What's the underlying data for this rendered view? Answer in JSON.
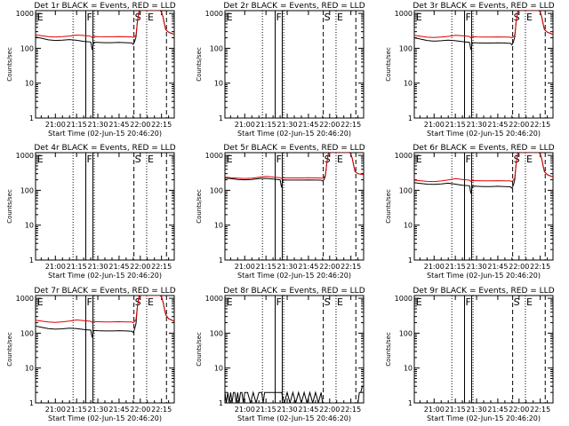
{
  "figure": {
    "ylabel": "Counts/sec",
    "xlabel": "Start Time (02-Jun-15 20:46:20)",
    "x_ticks": [
      "21:00",
      "21:15",
      "21:30",
      "21:45",
      "22:00",
      "22:15"
    ],
    "x_tick_minutes": [
      0,
      15,
      30,
      45,
      60,
      75
    ],
    "x_range_minutes": [
      -14,
      84
    ],
    "y_ticks": [
      "1",
      "10",
      "100",
      "1000"
    ],
    "y_range": [
      1,
      1200
    ],
    "y_scale": "log",
    "colors": {
      "events": "#000000",
      "lld": "#e00000",
      "frame": "#000000"
    },
    "markers": [
      {
        "label": "E",
        "x": -13.5,
        "line": "none"
      },
      {
        "label": "F",
        "x": 21.5,
        "line": "solid"
      },
      {
        "label": "",
        "x": 26.5,
        "line": "solid"
      },
      {
        "label": "",
        "x": 12.5,
        "line": "dotted"
      },
      {
        "label": "",
        "x": 27.5,
        "line": "dotted"
      },
      {
        "label": "S",
        "x": 55.5,
        "line": "dashed"
      },
      {
        "label": "E",
        "x": 64.5,
        "line": "dotted"
      },
      {
        "label": "",
        "x": 78.5,
        "line": "dashed"
      }
    ]
  },
  "chart_data": [
    {
      "type": "line",
      "title": "Det 1r BLACK = Events, RED = LLD",
      "series": [
        {
          "name": "Events",
          "x": [
            -14,
            -10,
            -5,
            0,
            5,
            10,
            15,
            20,
            25,
            26,
            27,
            30,
            35,
            40,
            45,
            50,
            54,
            55,
            56,
            57,
            58,
            59,
            60,
            61,
            62,
            64,
            66,
            68,
            70,
            72,
            73,
            74,
            75,
            76,
            77,
            78,
            80,
            82,
            84
          ],
          "y": [
            210,
            195,
            175,
            168,
            172,
            178,
            170,
            158,
            152,
            90,
            148,
            147,
            145,
            145,
            147,
            145,
            142,
            130,
            155,
            210,
            600,
            1100,
            1200,
            1200,
            1200,
            1200,
            1200,
            1200,
            1200,
            1200,
            1200,
            1200,
            1100,
            800,
            500,
            340,
            290,
            270,
            250
          ]
        },
        {
          "name": "LLD",
          "x": [
            -14,
            -10,
            -5,
            0,
            5,
            10,
            15,
            20,
            25,
            26,
            27,
            30,
            35,
            40,
            45,
            50,
            54,
            55,
            56,
            57,
            58,
            59,
            60,
            61,
            62,
            64,
            66,
            68,
            70,
            72,
            73,
            74,
            75,
            76,
            77,
            78,
            80,
            82,
            84
          ],
          "y": [
            245,
            230,
            215,
            210,
            215,
            225,
            240,
            232,
            222,
            205,
            218,
            216,
            214,
            214,
            216,
            214,
            212,
            205,
            215,
            240,
            600,
            1100,
            1200,
            1200,
            1200,
            1200,
            1200,
            1200,
            1200,
            1200,
            1200,
            1200,
            1100,
            800,
            500,
            340,
            290,
            270,
            250
          ]
        }
      ]
    },
    {
      "type": "line",
      "title": "Det 2r BLACK = Events, RED = LLD",
      "series": []
    },
    {
      "type": "line",
      "title": "Det 3r BLACK = Events, RED = LLD",
      "series": [
        {
          "name": "Events",
          "x": [
            -14,
            -10,
            -5,
            0,
            5,
            10,
            15,
            20,
            25,
            26,
            27,
            30,
            35,
            40,
            45,
            50,
            54,
            55,
            56,
            57,
            58,
            59,
            60,
            61,
            62,
            64,
            66,
            68,
            70,
            72,
            73,
            74,
            75,
            76,
            77,
            78,
            80,
            82,
            84
          ],
          "y": [
            200,
            185,
            168,
            160,
            165,
            172,
            165,
            155,
            148,
            90,
            145,
            143,
            141,
            141,
            143,
            141,
            138,
            126,
            150,
            210,
            600,
            1100,
            1200,
            1200,
            1200,
            1200,
            1200,
            1200,
            1200,
            1200,
            1200,
            1200,
            1100,
            800,
            500,
            340,
            290,
            270,
            250
          ]
        },
        {
          "name": "LLD",
          "x": [
            -14,
            -10,
            -5,
            0,
            5,
            10,
            15,
            20,
            25,
            26,
            27,
            30,
            35,
            40,
            45,
            50,
            54,
            55,
            56,
            57,
            58,
            59,
            60,
            61,
            62,
            64,
            66,
            68,
            70,
            72,
            73,
            74,
            75,
            76,
            77,
            78,
            80,
            82,
            84
          ],
          "y": [
            235,
            222,
            208,
            203,
            210,
            220,
            236,
            228,
            218,
            200,
            214,
            212,
            210,
            210,
            212,
            210,
            208,
            200,
            212,
            240,
            600,
            1100,
            1200,
            1200,
            1200,
            1200,
            1200,
            1200,
            1200,
            1200,
            1200,
            1200,
            1100,
            800,
            500,
            340,
            290,
            270,
            250
          ]
        }
      ]
    },
    {
      "type": "line",
      "title": "Det 4r BLACK = Events, RED = LLD",
      "series": []
    },
    {
      "type": "line",
      "title": "Det 5r BLACK = Events, RED = LLD",
      "series": [
        {
          "name": "Events",
          "x": [
            -14,
            -10,
            -5,
            0,
            5,
            10,
            15,
            20,
            25,
            26,
            27,
            30,
            35,
            40,
            45,
            50,
            54,
            55,
            56,
            57,
            58,
            59,
            60,
            61,
            62,
            64,
            66,
            68,
            70,
            72,
            73,
            74,
            75,
            76,
            77,
            78,
            80,
            82,
            84
          ],
          "y": [
            225,
            215,
            205,
            200,
            205,
            215,
            220,
            210,
            200,
            120,
            198,
            196,
            196,
            196,
            198,
            196,
            195,
            185,
            200,
            260,
            600,
            1100,
            1200,
            1200,
            1200,
            1200,
            1200,
            1200,
            1200,
            1200,
            1200,
            1200,
            1100,
            800,
            500,
            340,
            300,
            290,
            280
          ]
        },
        {
          "name": "LLD",
          "x": [
            -14,
            -10,
            -5,
            0,
            5,
            10,
            15,
            20,
            25,
            26,
            27,
            30,
            35,
            40,
            45,
            50,
            54,
            55,
            56,
            57,
            58,
            59,
            60,
            61,
            62,
            64,
            66,
            68,
            70,
            72,
            73,
            74,
            75,
            76,
            77,
            78,
            80,
            82,
            84
          ],
          "y": [
            240,
            230,
            222,
            218,
            222,
            235,
            250,
            240,
            230,
            218,
            228,
            226,
            226,
            226,
            228,
            226,
            225,
            220,
            232,
            270,
            600,
            1100,
            1200,
            1200,
            1200,
            1200,
            1200,
            1200,
            1200,
            1200,
            1200,
            1200,
            1100,
            800,
            500,
            340,
            300,
            290,
            280
          ]
        }
      ]
    },
    {
      "type": "line",
      "title": "Det 6r BLACK = Events, RED = LLD",
      "series": [
        {
          "name": "Events",
          "x": [
            -14,
            -10,
            -5,
            0,
            5,
            10,
            15,
            20,
            25,
            26,
            27,
            30,
            35,
            40,
            45,
            50,
            54,
            55,
            56,
            57,
            58,
            59,
            60,
            61,
            62,
            64,
            66,
            68,
            70,
            72,
            73,
            74,
            75,
            76,
            77,
            78,
            80,
            82,
            84
          ],
          "y": [
            165,
            158,
            150,
            148,
            152,
            160,
            150,
            140,
            135,
            80,
            132,
            130,
            128,
            128,
            130,
            128,
            126,
            115,
            140,
            200,
            600,
            1100,
            1200,
            1200,
            1200,
            1200,
            1200,
            1200,
            1200,
            1200,
            1200,
            1200,
            1100,
            800,
            500,
            340,
            280,
            260,
            240
          ]
        },
        {
          "name": "LLD",
          "x": [
            -14,
            -10,
            -5,
            0,
            5,
            10,
            15,
            20,
            25,
            26,
            27,
            30,
            35,
            40,
            45,
            50,
            54,
            55,
            56,
            57,
            58,
            59,
            60,
            61,
            62,
            64,
            66,
            68,
            70,
            72,
            73,
            74,
            75,
            76,
            77,
            78,
            80,
            82,
            84
          ],
          "y": [
            195,
            188,
            180,
            178,
            185,
            198,
            215,
            205,
            195,
            180,
            190,
            188,
            186,
            186,
            188,
            186,
            185,
            178,
            195,
            230,
            600,
            1100,
            1200,
            1200,
            1200,
            1200,
            1200,
            1200,
            1200,
            1200,
            1200,
            1200,
            1100,
            800,
            500,
            340,
            280,
            260,
            240
          ]
        }
      ]
    },
    {
      "type": "line",
      "title": "Det 7r BLACK = Events, RED = LLD",
      "series": [
        {
          "name": "Events",
          "x": [
            -14,
            -10,
            -5,
            0,
            5,
            10,
            15,
            20,
            25,
            26,
            27,
            30,
            35,
            40,
            45,
            50,
            54,
            55,
            56,
            57,
            58,
            59,
            60,
            61,
            62,
            64,
            66,
            68,
            70,
            72,
            73,
            74,
            75,
            76,
            77,
            78,
            80,
            82,
            84
          ],
          "y": [
            160,
            148,
            135,
            130,
            133,
            140,
            135,
            128,
            122,
            75,
            120,
            118,
            116,
            116,
            118,
            116,
            114,
            105,
            130,
            190,
            600,
            1100,
            1200,
            1200,
            1200,
            1200,
            1200,
            1200,
            1200,
            1200,
            1200,
            1200,
            1100,
            800,
            500,
            340,
            260,
            240,
            220
          ]
        },
        {
          "name": "LLD",
          "x": [
            -14,
            -10,
            -5,
            0,
            5,
            10,
            15,
            20,
            25,
            26,
            27,
            30,
            35,
            40,
            45,
            50,
            54,
            55,
            56,
            57,
            58,
            59,
            60,
            61,
            62,
            64,
            66,
            68,
            70,
            72,
            73,
            74,
            75,
            76,
            77,
            78,
            80,
            82,
            84
          ],
          "y": [
            235,
            222,
            210,
            205,
            212,
            222,
            240,
            230,
            220,
            205,
            215,
            213,
            211,
            211,
            213,
            211,
            209,
            200,
            215,
            250,
            600,
            1100,
            1200,
            1200,
            1200,
            1200,
            1200,
            1200,
            1200,
            1200,
            1200,
            1200,
            1100,
            800,
            500,
            340,
            260,
            240,
            220
          ]
        }
      ]
    },
    {
      "type": "line",
      "title": "Det 8r BLACK = Events, RED = LLD",
      "series": [
        {
          "name": "Events",
          "x": [
            -14,
            -13,
            -12,
            -11,
            -10,
            -9,
            -8,
            -7,
            -6,
            -5,
            -4,
            -3,
            -2,
            -1,
            0,
            2,
            4,
            6,
            8,
            10,
            12,
            13,
            14,
            15,
            16,
            18,
            20,
            22,
            24,
            26,
            28,
            30,
            32,
            34,
            36,
            38,
            40,
            42,
            44,
            46,
            48,
            50,
            52,
            54,
            55,
            55.5,
            78.5,
            79,
            80,
            81,
            82,
            83,
            84
          ],
          "y": [
            2,
            1,
            2,
            1,
            2,
            1,
            2,
            2,
            1,
            2,
            1,
            2,
            2,
            1,
            2,
            2,
            1,
            2,
            1,
            2,
            2,
            1,
            2,
            2,
            2,
            2,
            2,
            2,
            2,
            2,
            1,
            2,
            1,
            2,
            1,
            2,
            1,
            2,
            1,
            2,
            1,
            2,
            1,
            2,
            1,
            null,
            null,
            1,
            1,
            2,
            2,
            3,
            3
          ]
        }
      ]
    },
    {
      "type": "line",
      "title": "Det 9r BLACK = Events, RED = LLD",
      "series": []
    }
  ]
}
